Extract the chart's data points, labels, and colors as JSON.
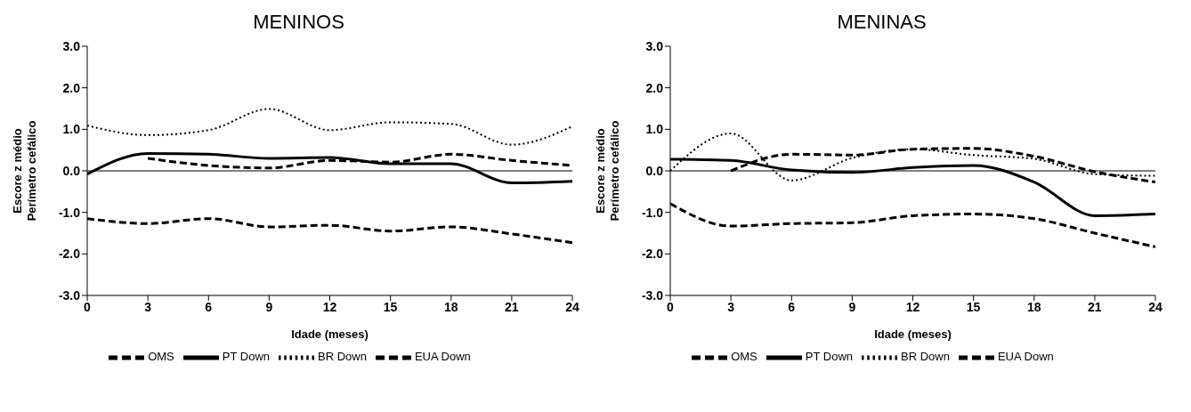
{
  "chart_data": [
    {
      "type": "line",
      "title": "MENINOS",
      "xlabel": "Idade (meses)",
      "ylabel": "Escore z médio\nPerímetro cefálico",
      "x": [
        0,
        3,
        6,
        9,
        12,
        15,
        18,
        21,
        24
      ],
      "xlim": [
        0,
        24
      ],
      "xticks": [
        0,
        3,
        6,
        9,
        12,
        15,
        18,
        21,
        24
      ],
      "ylim": [
        -3,
        3
      ],
      "yticks": [
        {
          "value": -3,
          "label": "-3.0"
        },
        {
          "value": -2,
          "label": "-2.0"
        },
        {
          "value": -1,
          "label": "-1.0"
        },
        {
          "value": 0,
          "label": "0.0"
        },
        {
          "value": 1,
          "label": "1.0"
        },
        {
          "value": 2,
          "label": "2.0"
        },
        {
          "value": 3,
          "label": "3.0"
        }
      ],
      "ref_lines": [
        {
          "axis": "y",
          "value": 0
        }
      ],
      "legend": "bottom",
      "marker": "none",
      "series": [
        {
          "name": "OMS",
          "color": "#000000",
          "line_style": "dashed",
          "values": [
            -1.15,
            -1.27,
            -1.15,
            -1.35,
            -1.31,
            -1.45,
            -1.35,
            -1.52,
            -1.73
          ]
        },
        {
          "name": "PT Down",
          "color": "#000000",
          "line_style": "solid",
          "values": [
            -0.08,
            0.42,
            0.4,
            0.3,
            0.32,
            0.17,
            0.17,
            -0.29,
            -0.25
          ]
        },
        {
          "name": "BR Down",
          "color": "#000000",
          "line_style": "dotted",
          "values": [
            1.09,
            0.86,
            0.98,
            1.49,
            0.98,
            1.17,
            1.13,
            0.63,
            1.07
          ]
        },
        {
          "name": "EUA Down",
          "color": "#000000",
          "line_style": "dashed",
          "values": [
            null,
            0.3,
            0.13,
            0.07,
            0.25,
            0.21,
            0.4,
            0.25,
            0.13
          ]
        }
      ]
    },
    {
      "type": "line",
      "title": "MENINAS",
      "xlabel": "Idade (meses)",
      "ylabel": "Escore z médio\nPerímetro cefálico",
      "x": [
        0,
        3,
        6,
        9,
        12,
        15,
        18,
        21,
        24
      ],
      "xlim": [
        0,
        24
      ],
      "xticks": [
        0,
        3,
        6,
        9,
        12,
        15,
        18,
        21,
        24
      ],
      "ylim": [
        -3,
        3
      ],
      "yticks": [
        {
          "value": -3,
          "label": "-3.0"
        },
        {
          "value": -2,
          "label": "-2.0"
        },
        {
          "value": -1,
          "label": "-1.0"
        },
        {
          "value": 0,
          "label": "0.0"
        },
        {
          "value": 1,
          "label": "1.0"
        },
        {
          "value": 2,
          "label": "2.0"
        },
        {
          "value": 3,
          "label": "3.0"
        }
      ],
      "ref_lines": [
        {
          "axis": "y",
          "value": 0
        }
      ],
      "legend": "bottom",
      "marker": "none",
      "series": [
        {
          "name": "OMS",
          "color": "#000000",
          "line_style": "dashed",
          "values": [
            -0.79,
            -1.33,
            -1.27,
            -1.25,
            -1.08,
            -1.04,
            -1.15,
            -1.5,
            -1.83
          ]
        },
        {
          "name": "PT Down",
          "color": "#000000",
          "line_style": "solid",
          "values": [
            0.28,
            0.25,
            0.02,
            -0.04,
            0.08,
            0.13,
            -0.27,
            -1.08,
            -1.04
          ]
        },
        {
          "name": "BR Down",
          "color": "#000000",
          "line_style": "dotted",
          "values": [
            0,
            0.9,
            -0.23,
            0.31,
            0.52,
            0.38,
            0.29,
            -0.08,
            -0.12
          ]
        },
        {
          "name": "EUA Down",
          "color": "#000000",
          "line_style": "dashed",
          "values": [
            null,
            0,
            0.4,
            0.38,
            0.52,
            0.54,
            0.35,
            -0.02,
            -0.27
          ]
        }
      ]
    }
  ]
}
